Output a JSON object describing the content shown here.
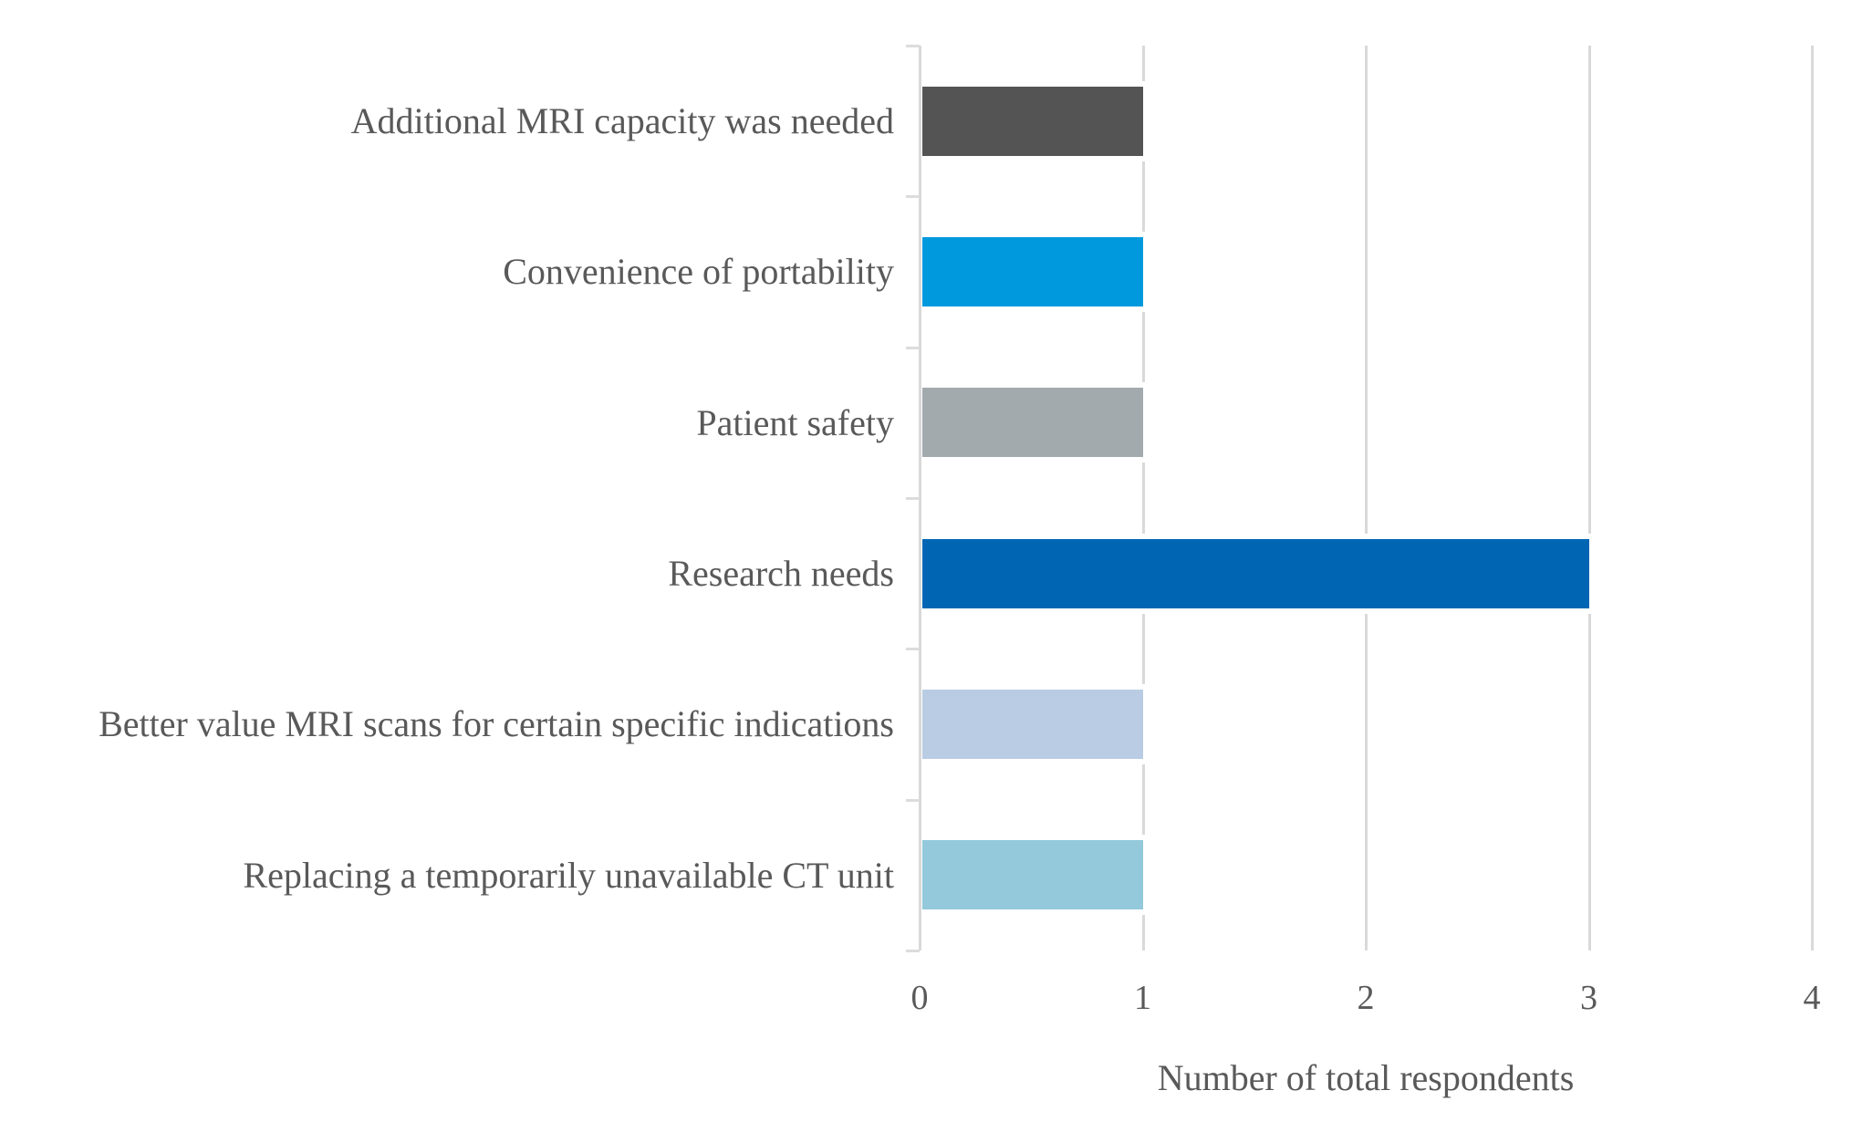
{
  "chart_data": {
    "type": "bar",
    "orientation": "horizontal",
    "title": "",
    "xlabel": "Number of total respondents",
    "ylabel": "",
    "categories": [
      "Additional MRI capacity was needed",
      "Convenience of portability",
      "Patient safety",
      "Research needs",
      "Better value MRI scans for certain specific indications",
      "Replacing a temporarily unavailable CT unit"
    ],
    "values": [
      1,
      1,
      1,
      3,
      1,
      1
    ],
    "bar_colors": [
      "#545454",
      "#0099DD",
      "#A3AAAE",
      "#0066B4",
      "#B9CCE4",
      "#93C9DB"
    ],
    "xlim": [
      0,
      4
    ],
    "x_ticks": [
      0,
      1,
      2,
      3,
      4
    ],
    "x_tick_labels": [
      "0",
      "1",
      "2",
      "3",
      "4"
    ],
    "grid": true,
    "gridline_color": "#D9D9D9",
    "axis_color": "#DCDCDC",
    "text_color": "#595959",
    "background_color": "#FFFFFF",
    "legend": null
  }
}
